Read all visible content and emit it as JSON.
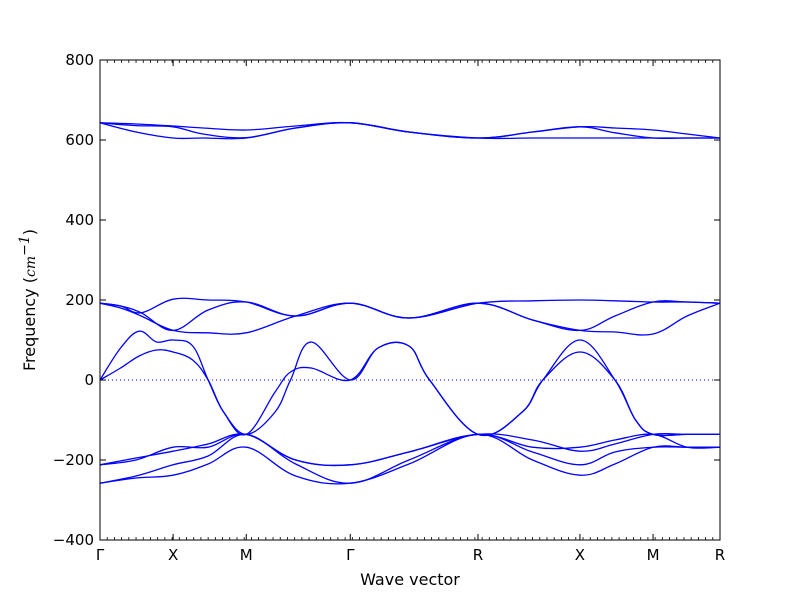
{
  "chart_data": {
    "type": "line",
    "title": "",
    "xlabel": "Wave vector",
    "ylabel_prefix": "Frequency (",
    "ylabel_unit": "cm",
    "ylabel_exponent": "−1",
    "ylabel_suffix": ")",
    "ylim": [
      -400,
      800
    ],
    "xlim": [
      0,
      6.02
    ],
    "yticks": [
      -400,
      -200,
      0,
      200,
      400,
      600,
      800
    ],
    "ytick_labels": [
      "−400",
      "−200",
      "0",
      "200",
      "400",
      "600",
      "800"
    ],
    "x_symmetry_points": [
      {
        "label": "Γ",
        "x": 0
      },
      {
        "label": "X",
        "x": 0.71
      },
      {
        "label": "M",
        "x": 1.42
      },
      {
        "label": "Γ",
        "x": 2.43
      },
      {
        "label": "R",
        "x": 3.67
      },
      {
        "label": "X",
        "x": 4.66
      },
      {
        "label": "M",
        "x": 5.37
      },
      {
        "label": "R",
        "x": 6.02
      }
    ],
    "zero_line": true,
    "grid": false,
    "legend": "none",
    "line_color": "#0000ff",
    "series": [
      {
        "x": [
          0,
          0.35,
          0.71,
          1.0,
          1.42,
          1.9,
          2.43,
          3.0,
          3.67,
          4.2,
          4.66,
          5.0,
          5.37,
          5.7,
          6.02
        ],
        "values": [
          643,
          640,
          635,
          630,
          625,
          635,
          643,
          620,
          605,
          620,
          633,
          630,
          625,
          615,
          605
        ]
      },
      {
        "x": [
          0,
          0.35,
          0.71,
          1.0,
          1.42,
          1.9,
          2.43,
          3.0,
          3.67,
          4.2,
          4.66,
          5.0,
          5.37,
          5.7,
          6.02
        ],
        "values": [
          643,
          636,
          633,
          615,
          606,
          630,
          643,
          620,
          605,
          620,
          633,
          618,
          605,
          605,
          605
        ]
      },
      {
        "x": [
          0,
          0.35,
          0.71,
          1.0,
          1.42,
          1.9,
          2.43,
          3.0,
          3.67,
          4.2,
          4.66,
          5.0,
          5.37,
          5.7,
          6.02
        ],
        "values": [
          643,
          620,
          605,
          605,
          605,
          630,
          643,
          620,
          605,
          605,
          605,
          605,
          605,
          605,
          605
        ]
      },
      {
        "x": [
          0,
          0.2,
          0.4,
          0.71,
          1.05,
          1.42,
          1.9,
          2.43,
          3.0,
          3.67,
          4.2,
          4.66,
          5.0,
          5.37,
          5.7,
          6.02
        ],
        "values": [
          192,
          185,
          168,
          202,
          200,
          195,
          160,
          192,
          155,
          192,
          198,
          200,
          198,
          195,
          195,
          192
        ]
      },
      {
        "x": [
          0,
          0.2,
          0.4,
          0.71,
          1.05,
          1.42,
          1.9,
          2.43,
          3.0,
          3.67,
          4.2,
          4.66,
          5.0,
          5.37,
          5.7,
          6.02
        ],
        "values": [
          192,
          185,
          168,
          124,
          175,
          195,
          160,
          192,
          155,
          192,
          150,
          124,
          160,
          195,
          195,
          192
        ]
      },
      {
        "x": [
          0,
          0.2,
          0.4,
          0.71,
          1.05,
          1.42,
          1.9,
          2.43,
          3.0,
          3.67,
          4.2,
          4.66,
          5.0,
          5.37,
          5.7,
          6.02
        ],
        "values": [
          192,
          180,
          160,
          124,
          118,
          118,
          160,
          192,
          155,
          192,
          150,
          124,
          120,
          115,
          160,
          192
        ]
      },
      {
        "x": [
          0,
          0.2,
          0.38,
          0.55,
          0.71,
          0.9,
          1.05,
          1.2,
          1.42,
          1.7,
          1.85,
          2.05,
          2.43,
          2.7,
          3.0,
          3.2,
          3.67,
          4.1,
          4.3,
          4.66,
          5.0,
          5.2,
          5.37,
          5.7,
          6.02
        ],
        "values": [
          0,
          80,
          122,
          95,
          100,
          85,
          0,
          -80,
          -136,
          -80,
          0,
          95,
          0,
          80,
          85,
          0,
          -136,
          -80,
          0,
          100,
          0,
          -100,
          -136,
          -136,
          -136
        ]
      },
      {
        "x": [
          0,
          0.2,
          0.38,
          0.55,
          0.71,
          0.9,
          1.05,
          1.2,
          1.42,
          1.7,
          1.85,
          2.05,
          2.43,
          2.7,
          3.0,
          3.2,
          3.67,
          4.1,
          4.3,
          4.66,
          5.0,
          5.2,
          5.37,
          5.7,
          6.02
        ],
        "values": [
          0,
          30,
          60,
          75,
          70,
          50,
          0,
          -80,
          -136,
          -30,
          20,
          30,
          0,
          80,
          85,
          0,
          -136,
          -80,
          0,
          70,
          0,
          -100,
          -136,
          -136,
          -136
        ]
      },
      {
        "x": [
          0,
          0.35,
          0.71,
          1.05,
          1.42,
          1.9,
          2.43,
          3.0,
          3.67,
          4.2,
          4.66,
          5.0,
          5.37,
          5.7,
          6.02
        ],
        "values": [
          -212,
          -200,
          -168,
          -168,
          -136,
          -200,
          -212,
          -180,
          -136,
          -168,
          -168,
          -150,
          -136,
          -168,
          -168
        ]
      },
      {
        "x": [
          0,
          0.35,
          0.71,
          1.05,
          1.42,
          1.9,
          2.43,
          3.0,
          3.67,
          4.2,
          4.66,
          5.0,
          5.37,
          5.7,
          6.02
        ],
        "values": [
          -212,
          -195,
          -178,
          -160,
          -136,
          -200,
          -212,
          -180,
          -136,
          -150,
          -178,
          -160,
          -136,
          -136,
          -136
        ]
      },
      {
        "x": [
          0,
          0.35,
          0.71,
          1.05,
          1.42,
          1.9,
          2.43,
          3.0,
          3.67,
          4.2,
          4.66,
          5.0,
          5.37,
          5.7,
          6.02
        ],
        "values": [
          -258,
          -240,
          -212,
          -190,
          -136,
          -210,
          -258,
          -200,
          -136,
          -180,
          -212,
          -180,
          -168,
          -168,
          -168
        ]
      },
      {
        "x": [
          0,
          0.35,
          0.71,
          1.05,
          1.42,
          1.9,
          2.43,
          3.0,
          3.67,
          4.2,
          4.66,
          5.0,
          5.37,
          5.7,
          6.02
        ],
        "values": [
          -258,
          -245,
          -238,
          -210,
          -168,
          -240,
          -258,
          -210,
          -136,
          -200,
          -238,
          -210,
          -168,
          -168,
          -168
        ]
      }
    ]
  }
}
